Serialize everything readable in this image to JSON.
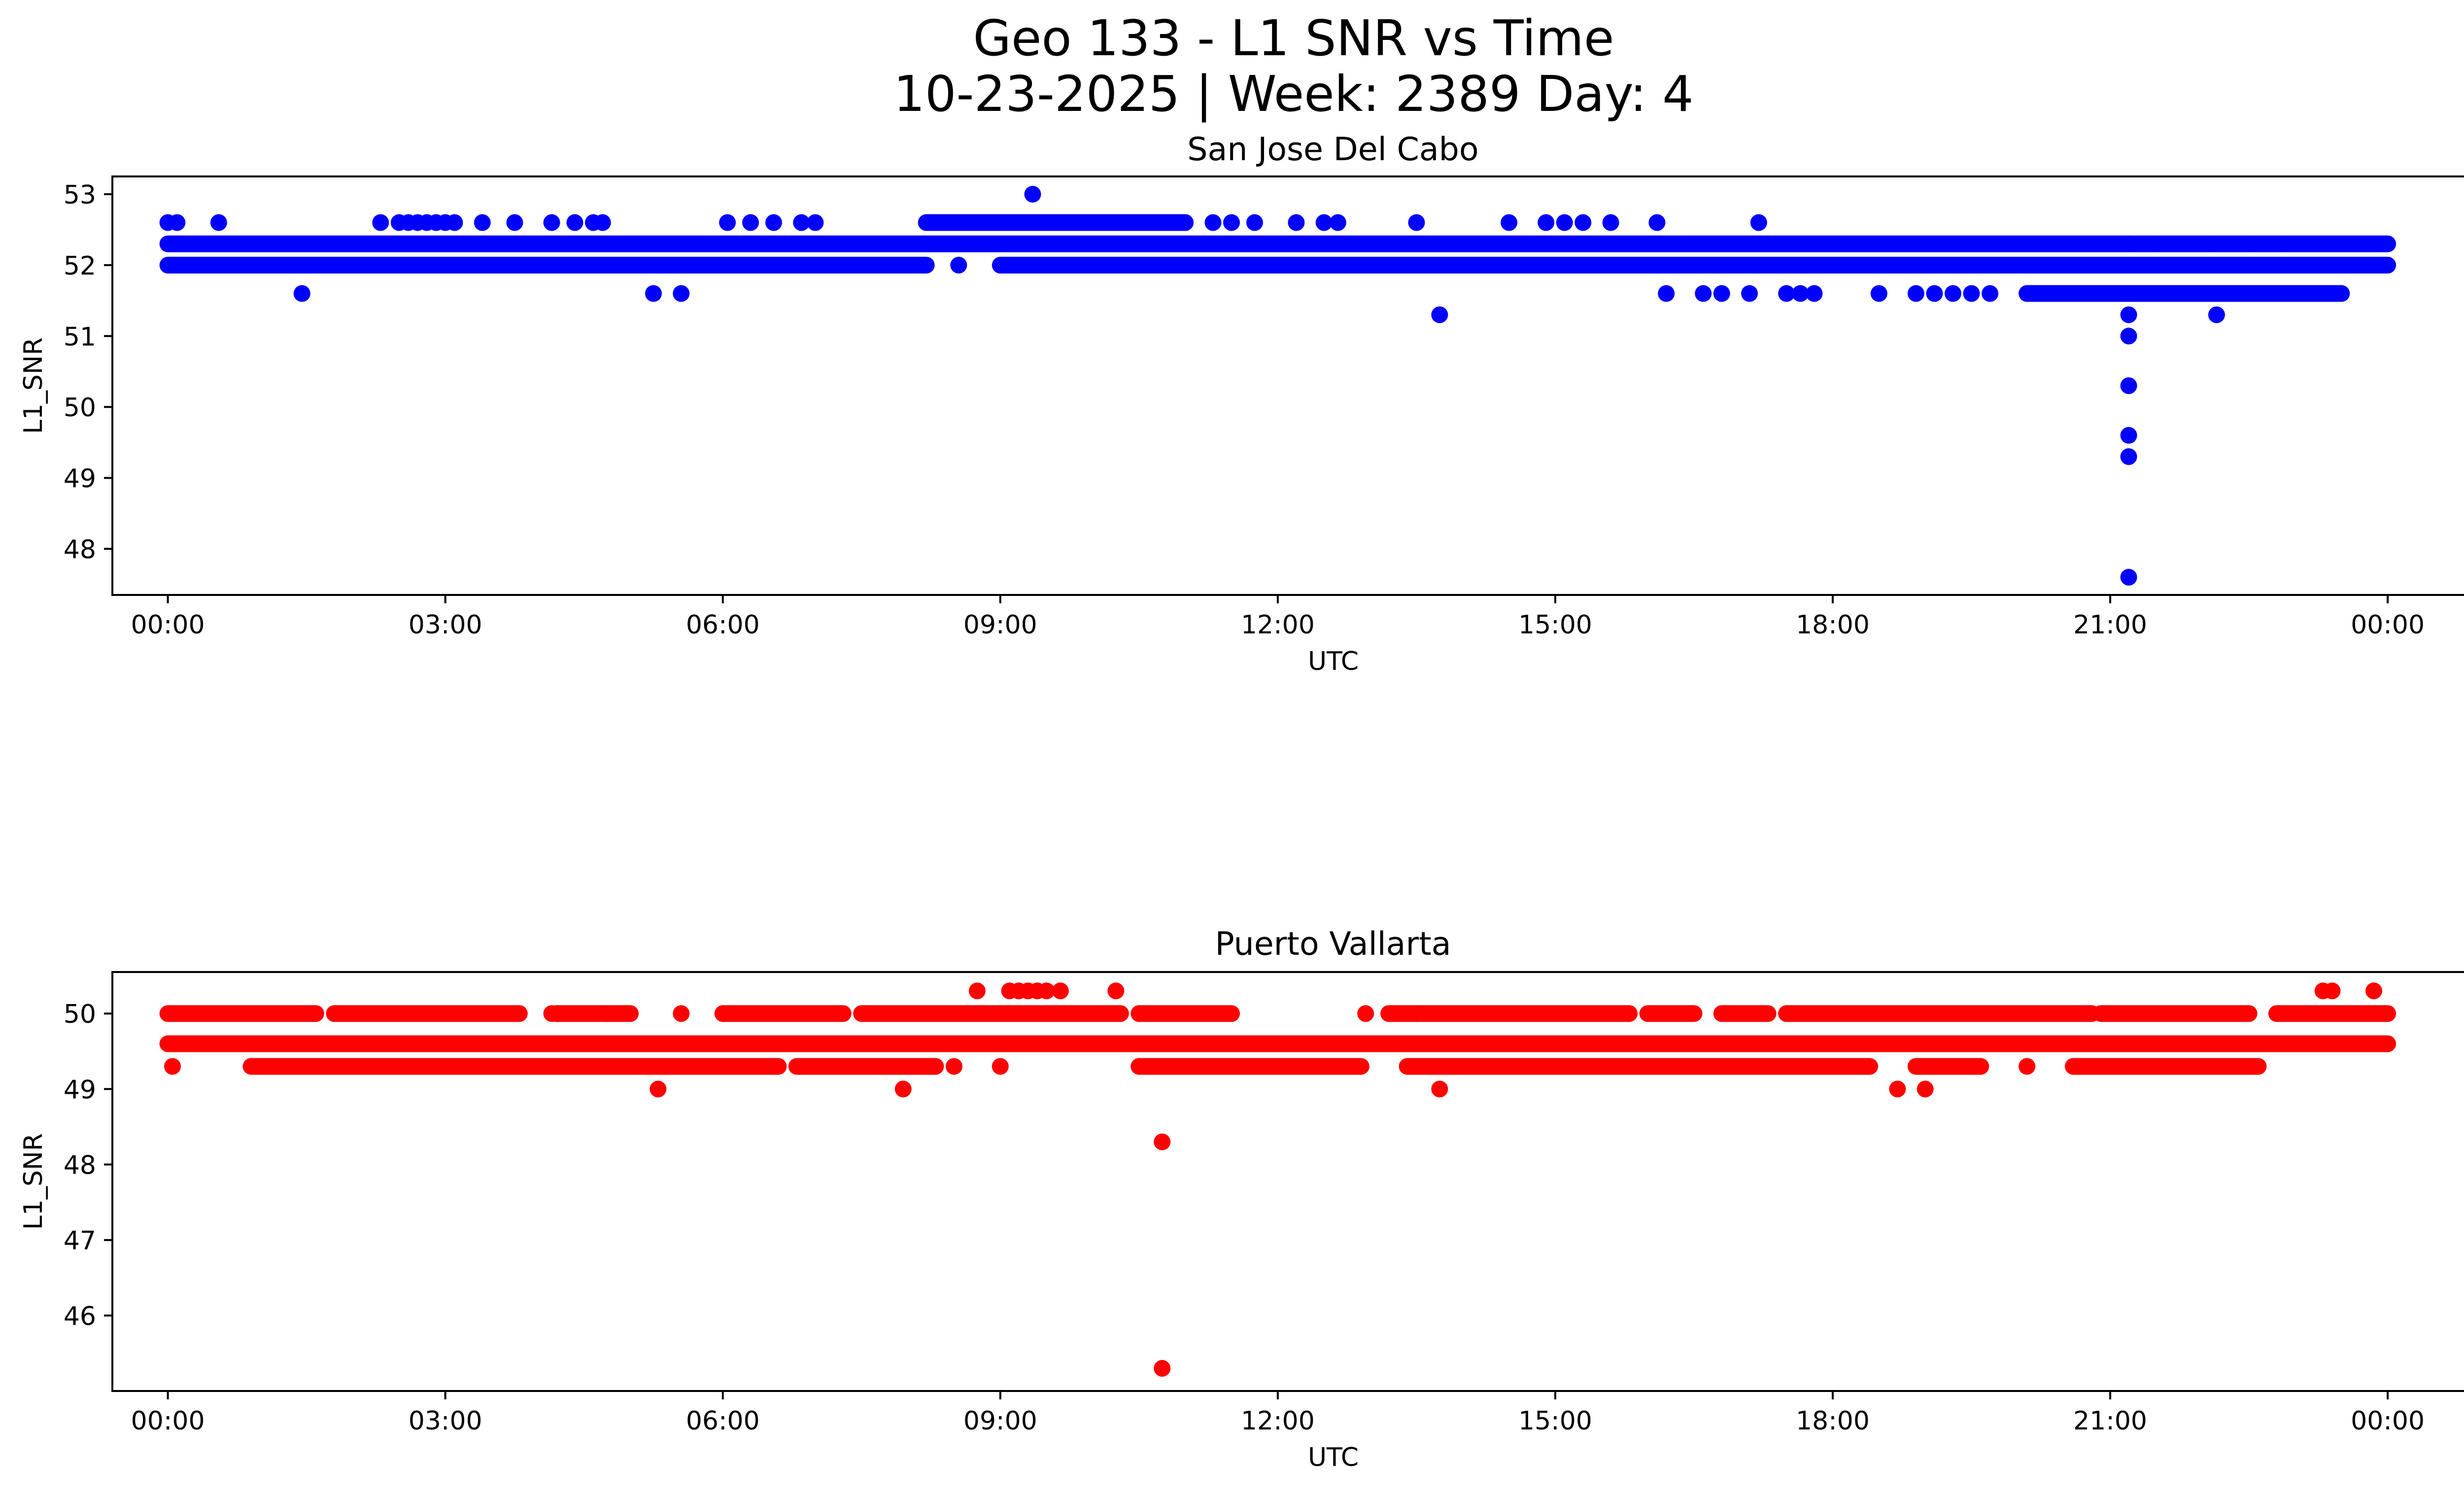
{
  "figure": {
    "title_line1": "Geo 133 - L1 SNR vs Time",
    "title_line2": "10-23-2025 | Week: 2389 Day: 4"
  },
  "chart_data": [
    {
      "type": "scatter",
      "title": "San Jose Del Cabo",
      "xlabel": "UTC",
      "ylabel": "L1_SNR",
      "color": "#0000ff",
      "x_unit": "hours",
      "xlim": [
        -0.6,
        25.8
      ],
      "ylim": [
        47.35,
        53.25
      ],
      "xticks": [
        0,
        3,
        6,
        9,
        12,
        15,
        18,
        21,
        24
      ],
      "xtick_labels": [
        "00:00",
        "03:00",
        "06:00",
        "09:00",
        "12:00",
        "15:00",
        "18:00",
        "21:00",
        "00:00"
      ],
      "yticks": [
        48,
        49,
        50,
        51,
        52,
        53
      ],
      "ytick_labels": [
        "48",
        "49",
        "50",
        "51",
        "52",
        "53"
      ],
      "bands": [
        {
          "y": 52.3,
          "segments": [
            [
              0,
              24
            ]
          ]
        },
        {
          "y": 52.0,
          "segments": [
            [
              0,
              8.2
            ],
            [
              9.0,
              24
            ]
          ]
        },
        {
          "y": 52.6,
          "segments": [
            [
              8.2,
              11.0
            ]
          ]
        },
        {
          "y": 51.6,
          "segments": [
            [
              20.1,
              23.5
            ]
          ]
        }
      ],
      "points": [
        [
          0.0,
          52.6
        ],
        [
          0.1,
          52.6
        ],
        [
          0.55,
          52.6
        ],
        [
          1.45,
          51.6
        ],
        [
          2.3,
          52.6
        ],
        [
          2.5,
          52.6
        ],
        [
          2.6,
          52.6
        ],
        [
          2.7,
          52.6
        ],
        [
          2.8,
          52.6
        ],
        [
          2.9,
          52.6
        ],
        [
          3.0,
          52.6
        ],
        [
          3.1,
          52.6
        ],
        [
          3.4,
          52.6
        ],
        [
          3.75,
          52.6
        ],
        [
          4.15,
          52.6
        ],
        [
          4.4,
          52.6
        ],
        [
          4.6,
          52.6
        ],
        [
          4.7,
          52.6
        ],
        [
          5.25,
          51.6
        ],
        [
          5.55,
          51.6
        ],
        [
          6.05,
          52.6
        ],
        [
          6.3,
          52.6
        ],
        [
          6.55,
          52.6
        ],
        [
          6.85,
          52.6
        ],
        [
          7.0,
          52.6
        ],
        [
          8.55,
          52.0
        ],
        [
          9.35,
          53.0
        ],
        [
          11.3,
          52.6
        ],
        [
          11.5,
          52.6
        ],
        [
          11.75,
          52.6
        ],
        [
          12.2,
          52.6
        ],
        [
          12.5,
          52.6
        ],
        [
          12.65,
          52.6
        ],
        [
          13.5,
          52.6
        ],
        [
          13.75,
          51.3
        ],
        [
          14.5,
          52.6
        ],
        [
          14.9,
          52.6
        ],
        [
          15.1,
          52.6
        ],
        [
          15.3,
          52.6
        ],
        [
          15.6,
          52.6
        ],
        [
          16.1,
          52.6
        ],
        [
          16.2,
          51.6
        ],
        [
          16.6,
          51.6
        ],
        [
          16.8,
          51.6
        ],
        [
          17.1,
          51.6
        ],
        [
          17.2,
          52.6
        ],
        [
          17.5,
          51.6
        ],
        [
          17.65,
          51.6
        ],
        [
          17.8,
          51.6
        ],
        [
          18.5,
          51.6
        ],
        [
          18.9,
          51.6
        ],
        [
          19.1,
          51.6
        ],
        [
          19.3,
          51.6
        ],
        [
          19.5,
          51.6
        ],
        [
          19.7,
          51.6
        ],
        [
          21.2,
          51.3
        ],
        [
          21.2,
          51.0
        ],
        [
          21.2,
          50.3
        ],
        [
          21.2,
          49.6
        ],
        [
          21.2,
          49.3
        ],
        [
          21.2,
          47.6
        ],
        [
          22.15,
          51.3
        ],
        [
          21.2,
          52.3
        ],
        [
          21.5,
          52.3
        ],
        [
          22.1,
          52.3
        ],
        [
          22.5,
          52.3
        ],
        [
          22.9,
          52.3
        ]
      ]
    },
    {
      "type": "scatter",
      "title": "Puerto Vallarta",
      "xlabel": "UTC",
      "ylabel": "L1_SNR",
      "color": "#ff0000",
      "x_unit": "hours",
      "xlim": [
        -0.6,
        25.8
      ],
      "ylim": [
        45.0,
        50.55
      ],
      "xticks": [
        0,
        3,
        6,
        9,
        12,
        15,
        18,
        21,
        24
      ],
      "xtick_labels": [
        "00:00",
        "03:00",
        "06:00",
        "09:00",
        "12:00",
        "15:00",
        "18:00",
        "21:00",
        "00:00"
      ],
      "yticks": [
        46,
        47,
        48,
        49,
        50
      ],
      "ytick_labels": [
        "46",
        "47",
        "48",
        "49",
        "50"
      ],
      "bands": [
        {
          "y": 49.6,
          "segments": [
            [
              0,
              24
            ]
          ]
        },
        {
          "y": 50.0,
          "segments": [
            [
              0,
              1.6
            ],
            [
              1.8,
              3.8
            ],
            [
              4.2,
              5.0
            ],
            [
              6.0,
              7.3
            ],
            [
              7.5,
              10.3
            ],
            [
              10.5,
              11.5
            ],
            [
              13.2,
              15.8
            ],
            [
              16.0,
              16.5
            ],
            [
              16.8,
              17.3
            ],
            [
              17.5,
              20.8
            ],
            [
              20.9,
              22.5
            ],
            [
              22.8,
              24
            ]
          ]
        },
        {
          "y": 49.3,
          "segments": [
            [
              0.9,
              6.6
            ],
            [
              6.8,
              8.3
            ],
            [
              10.5,
              12.9
            ],
            [
              13.4,
              18.4
            ],
            [
              18.9,
              19.6
            ],
            [
              20.6,
              22.6
            ]
          ]
        }
      ],
      "points": [
        [
          0.05,
          49.3
        ],
        [
          5.3,
          49.0
        ],
        [
          5.55,
          50.0
        ],
        [
          7.95,
          49.0
        ],
        [
          8.5,
          49.3
        ],
        [
          8.75,
          50.3
        ],
        [
          9.0,
          49.3
        ],
        [
          9.1,
          50.3
        ],
        [
          9.2,
          50.3
        ],
        [
          9.3,
          50.3
        ],
        [
          9.4,
          50.3
        ],
        [
          9.5,
          50.3
        ],
        [
          9.65,
          50.3
        ],
        [
          10.25,
          50.3
        ],
        [
          10.75,
          48.3
        ],
        [
          10.75,
          45.3
        ],
        [
          12.95,
          50.0
        ],
        [
          13.75,
          49.0
        ],
        [
          18.7,
          49.0
        ],
        [
          19.0,
          49.0
        ],
        [
          20.1,
          49.3
        ],
        [
          23.3,
          50.3
        ],
        [
          23.4,
          50.3
        ],
        [
          23.85,
          50.3
        ],
        [
          4.75,
          50.0
        ],
        [
          4.15,
          50.0
        ],
        [
          13.5,
          50.0
        ]
      ]
    }
  ]
}
